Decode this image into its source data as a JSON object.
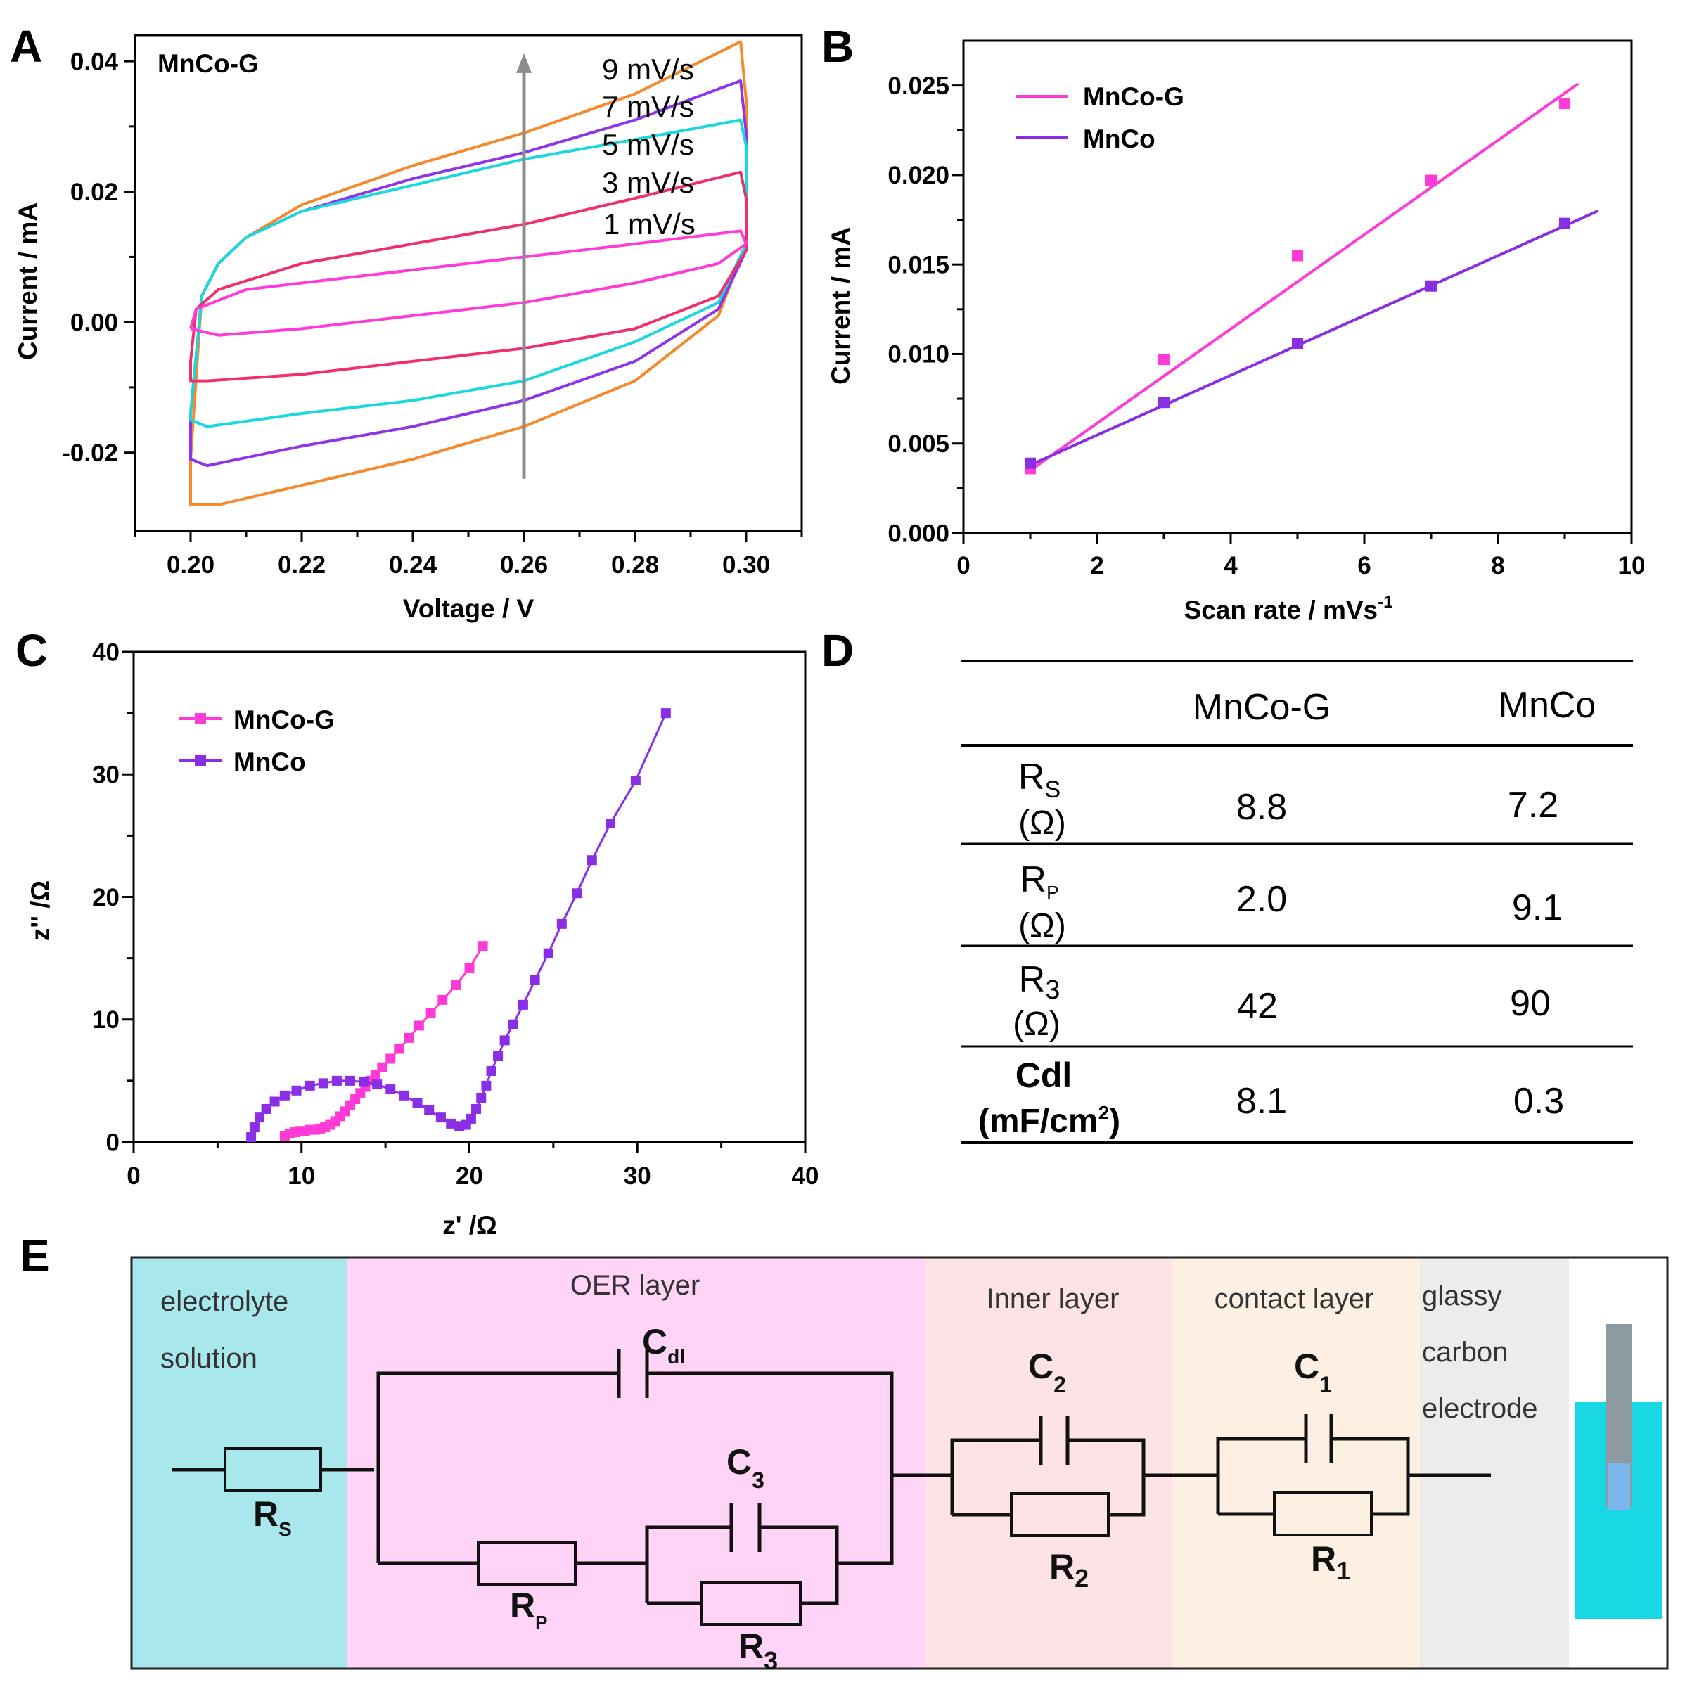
{
  "panel_labels": {
    "a": "A",
    "b": "B",
    "c": "C",
    "d": "D",
    "e": "E"
  },
  "colors": {
    "orange": "#f5892b",
    "purple": "#8f35e8",
    "cyan": "#1ad8de",
    "crimson": "#f0306a",
    "magenta": "#ff3ad6",
    "violet": "#8a2ee6",
    "gray": "#8c8c8c"
  },
  "chart_data": [
    {
      "id": "cv",
      "type": "line",
      "sample_label": "MnCo-G",
      "xlabel": "Voltage / V",
      "ylabel": "Current / mA",
      "xlim": [
        0.19,
        0.31
      ],
      "ylim": [
        -0.032,
        0.044
      ],
      "x_ticks": [
        "0.20",
        "0.22",
        "0.24",
        "0.26",
        "0.28",
        "0.30"
      ],
      "y_ticks": [
        "-0.02",
        "0.00",
        "0.02",
        "0.04"
      ],
      "x_tick_values": [
        0.2,
        0.22,
        0.24,
        0.26,
        0.28,
        0.3
      ],
      "y_tick_values": [
        -0.02,
        0.0,
        0.02,
        0.04
      ],
      "arrow_x": 0.26,
      "arrow_from": -0.024,
      "arrow_to": 0.041,
      "series": [
        {
          "name": "9 mV/s",
          "color": "#f5892b",
          "upper": [
            [
              0.2,
              -0.021
            ],
            [
              0.202,
              0.004
            ],
            [
              0.205,
              0.009
            ],
            [
              0.21,
              0.013
            ],
            [
              0.22,
              0.018
            ],
            [
              0.24,
              0.024
            ],
            [
              0.26,
              0.029
            ],
            [
              0.28,
              0.035
            ],
            [
              0.299,
              0.043
            ],
            [
              0.3,
              0.034
            ]
          ],
          "lower": [
            [
              0.3,
              0.012
            ],
            [
              0.295,
              0.001
            ],
            [
              0.28,
              -0.009
            ],
            [
              0.26,
              -0.016
            ],
            [
              0.24,
              -0.021
            ],
            [
              0.22,
              -0.025
            ],
            [
              0.205,
              -0.028
            ],
            [
              0.2,
              -0.028
            ]
          ]
        },
        {
          "name": "7 mV/s",
          "color": "#8f35e8",
          "upper": [
            [
              0.2,
              -0.014
            ],
            [
              0.202,
              0.004
            ],
            [
              0.205,
              0.009
            ],
            [
              0.21,
              0.013
            ],
            [
              0.22,
              0.017
            ],
            [
              0.24,
              0.022
            ],
            [
              0.26,
              0.026
            ],
            [
              0.28,
              0.031
            ],
            [
              0.299,
              0.037
            ],
            [
              0.3,
              0.029
            ]
          ],
          "lower": [
            [
              0.3,
              0.011
            ],
            [
              0.295,
              0.002
            ],
            [
              0.28,
              -0.006
            ],
            [
              0.26,
              -0.012
            ],
            [
              0.24,
              -0.016
            ],
            [
              0.22,
              -0.019
            ],
            [
              0.203,
              -0.022
            ],
            [
              0.2,
              -0.021
            ]
          ]
        },
        {
          "name": "5 mV/s",
          "color": "#1ad8de",
          "upper": [
            [
              0.2,
              -0.014
            ],
            [
              0.202,
              0.004
            ],
            [
              0.205,
              0.009
            ],
            [
              0.21,
              0.013
            ],
            [
              0.22,
              0.017
            ],
            [
              0.24,
              0.021
            ],
            [
              0.26,
              0.025
            ],
            [
              0.28,
              0.028
            ],
            [
              0.299,
              0.031
            ],
            [
              0.3,
              0.027
            ]
          ],
          "lower": [
            [
              0.3,
              0.012
            ],
            [
              0.295,
              0.003
            ],
            [
              0.28,
              -0.003
            ],
            [
              0.26,
              -0.009
            ],
            [
              0.24,
              -0.012
            ],
            [
              0.22,
              -0.014
            ],
            [
              0.203,
              -0.016
            ],
            [
              0.2,
              -0.015
            ]
          ]
        },
        {
          "name": "3 mV/s",
          "color": "#f0306a",
          "upper": [
            [
              0.2,
              -0.006
            ],
            [
              0.201,
              0.002
            ],
            [
              0.205,
              0.005
            ],
            [
              0.22,
              0.009
            ],
            [
              0.24,
              0.012
            ],
            [
              0.26,
              0.015
            ],
            [
              0.28,
              0.019
            ],
            [
              0.299,
              0.023
            ],
            [
              0.3,
              0.019
            ]
          ],
          "lower": [
            [
              0.3,
              0.011
            ],
            [
              0.295,
              0.004
            ],
            [
              0.28,
              -0.001
            ],
            [
              0.26,
              -0.004
            ],
            [
              0.24,
              -0.006
            ],
            [
              0.22,
              -0.008
            ],
            [
              0.203,
              -0.009
            ],
            [
              0.2,
              -0.009
            ]
          ]
        },
        {
          "name": "1 mV/s",
          "color": "#ff3ad6",
          "upper": [
            [
              0.2,
              -0.001
            ],
            [
              0.201,
              0.002
            ],
            [
              0.21,
              0.005
            ],
            [
              0.22,
              0.006
            ],
            [
              0.24,
              0.008
            ],
            [
              0.26,
              0.01
            ],
            [
              0.28,
              0.012
            ],
            [
              0.299,
              0.014
            ],
            [
              0.3,
              0.012
            ]
          ],
          "lower": [
            [
              0.3,
              0.012
            ],
            [
              0.295,
              0.009
            ],
            [
              0.28,
              0.006
            ],
            [
              0.26,
              0.003
            ],
            [
              0.24,
              0.001
            ],
            [
              0.22,
              -0.001
            ],
            [
              0.205,
              -0.002
            ],
            [
              0.2,
              -0.001
            ]
          ]
        }
      ]
    },
    {
      "id": "cdl",
      "type": "scatter",
      "xlabel": "Scan rate / mVs",
      "xlabel_sup": "-1",
      "ylabel": "Current / mA",
      "xlim": [
        0,
        10
      ],
      "ylim": [
        0,
        0.0275
      ],
      "x_ticks": [
        "0",
        "2",
        "4",
        "6",
        "8",
        "10"
      ],
      "y_ticks": [
        "0.000",
        "0.005",
        "0.010",
        "0.015",
        "0.020",
        "0.025"
      ],
      "x_tick_values": [
        0,
        2,
        4,
        6,
        8,
        10
      ],
      "y_tick_values": [
        0,
        0.005,
        0.01,
        0.015,
        0.02,
        0.025
      ],
      "legend_position": "top-left",
      "series": [
        {
          "name": "MnCo-G",
          "color": "#ff3ad6",
          "x": [
            1,
            3,
            5,
            7,
            9
          ],
          "y": [
            0.0036,
            0.0097,
            0.0155,
            0.0197,
            0.024
          ],
          "fit": [
            [
              1,
              0.0035
            ],
            [
              9.2,
              0.0251
            ]
          ]
        },
        {
          "name": "MnCo",
          "color": "#8a2ee6",
          "x": [
            1,
            3,
            5,
            7,
            9
          ],
          "y": [
            0.0039,
            0.0073,
            0.0106,
            0.0138,
            0.0173
          ],
          "fit": [
            [
              1,
              0.0038
            ],
            [
              9.5,
              0.018
            ]
          ]
        }
      ]
    },
    {
      "id": "eis",
      "type": "line",
      "xlabel": "z' /Ω",
      "ylabel": "z'' /Ω",
      "xlim": [
        0,
        40
      ],
      "ylim": [
        0,
        40
      ],
      "x_ticks": [
        "0",
        "10",
        "20",
        "30",
        "40"
      ],
      "y_ticks": [
        "0",
        "10",
        "20",
        "30",
        "40"
      ],
      "x_tick_values": [
        0,
        10,
        20,
        30,
        40
      ],
      "y_tick_values": [
        0,
        10,
        20,
        30,
        40
      ],
      "legend_position": "top-left",
      "series": [
        {
          "name": "MnCo-G",
          "color": "#ff3ad6",
          "x": [
            9.0,
            9.3,
            9.6,
            9.9,
            10.2,
            10.5,
            10.8,
            11.1,
            11.4,
            11.7,
            12.0,
            12.3,
            12.6,
            12.9,
            13.2,
            13.5,
            13.8,
            14.1,
            14.4,
            14.8,
            15.3,
            15.8,
            16.4,
            17.0,
            17.7,
            18.4,
            19.2,
            20.0,
            20.8
          ],
          "y": [
            0.5,
            0.7,
            0.8,
            0.9,
            0.9,
            1.0,
            1.0,
            1.1,
            1.2,
            1.4,
            1.7,
            2.1,
            2.5,
            3.0,
            3.5,
            4.0,
            4.5,
            5.0,
            5.5,
            6.1,
            6.8,
            7.6,
            8.5,
            9.5,
            10.5,
            11.6,
            12.8,
            14.2,
            16.0
          ]
        },
        {
          "name": "MnCo",
          "color": "#8a2ee6",
          "x": [
            7.0,
            7.2,
            7.5,
            7.9,
            8.4,
            9.0,
            9.7,
            10.5,
            11.3,
            12.1,
            12.9,
            13.7,
            14.5,
            15.3,
            16.1,
            16.9,
            17.6,
            18.3,
            18.9,
            19.4,
            19.8,
            20.1,
            20.4,
            20.7,
            21.0,
            21.3,
            21.7,
            22.1,
            22.6,
            23.2,
            23.9,
            24.7,
            25.5,
            26.4,
            27.3,
            28.4,
            29.9,
            31.7
          ],
          "y": [
            0.4,
            1.2,
            2.0,
            2.7,
            3.3,
            3.8,
            4.2,
            4.6,
            4.8,
            5.0,
            5.0,
            4.9,
            4.7,
            4.3,
            3.8,
            3.2,
            2.6,
            2.0,
            1.5,
            1.3,
            1.4,
            1.9,
            2.7,
            3.6,
            4.6,
            5.8,
            7.0,
            8.3,
            9.6,
            11.2,
            13.2,
            15.4,
            17.8,
            20.3,
            23.0,
            26.0,
            29.5,
            35.0
          ]
        }
      ]
    }
  ],
  "table": {
    "headers": [
      "",
      "MnCo-G",
      "MnCo"
    ],
    "rows": [
      {
        "param": "R",
        "sub": "S",
        "unit": "(Ω)",
        "sup": "",
        "unit_tail": "",
        "mnco_g": "8.8",
        "mnco": "7.2"
      },
      {
        "param": "R",
        "sub": "P",
        "unit": "(Ω)",
        "sup": "",
        "unit_tail": "",
        "mnco_g": "2.0",
        "mnco": "9.1"
      },
      {
        "param": "R",
        "sub": "3",
        "unit": "(Ω)",
        "sup": "",
        "unit_tail": "",
        "mnco_g": "42",
        "mnco": "90"
      },
      {
        "param": "Cdl",
        "sub": "",
        "unit": "(mF/cm",
        "sup": "2",
        "unit_tail": ")",
        "mnco_g": "8.1",
        "mnco": "0.3"
      }
    ]
  },
  "circuit": {
    "regions": [
      {
        "label_lines": [
          "electrolyte",
          "solution"
        ],
        "color": "#a8e8ec"
      },
      {
        "label_lines": [
          "OER layer"
        ],
        "color": "#ffd4f6"
      },
      {
        "label_lines": [
          "Inner layer"
        ],
        "color": "#fde2e6"
      },
      {
        "label_lines": [
          "contact layer"
        ],
        "color": "#fdf0e2"
      },
      {
        "label_lines": [
          "glassy",
          "carbon",
          "electrode"
        ],
        "color": "#ececec"
      }
    ],
    "components": {
      "rs": {
        "main": "R",
        "sub": "S"
      },
      "cdl": {
        "main": "C",
        "sub": "dl"
      },
      "c3": {
        "main": "C",
        "sub": "3"
      },
      "rp": {
        "main": "R",
        "sub": "P"
      },
      "r3": {
        "main": "R",
        "sub": "3"
      },
      "c2": {
        "main": "C",
        "sub": "2"
      },
      "r2": {
        "main": "R",
        "sub": "2"
      },
      "c1": {
        "main": "C",
        "sub": "1"
      },
      "r1": {
        "main": "R",
        "sub": "1"
      }
    }
  }
}
